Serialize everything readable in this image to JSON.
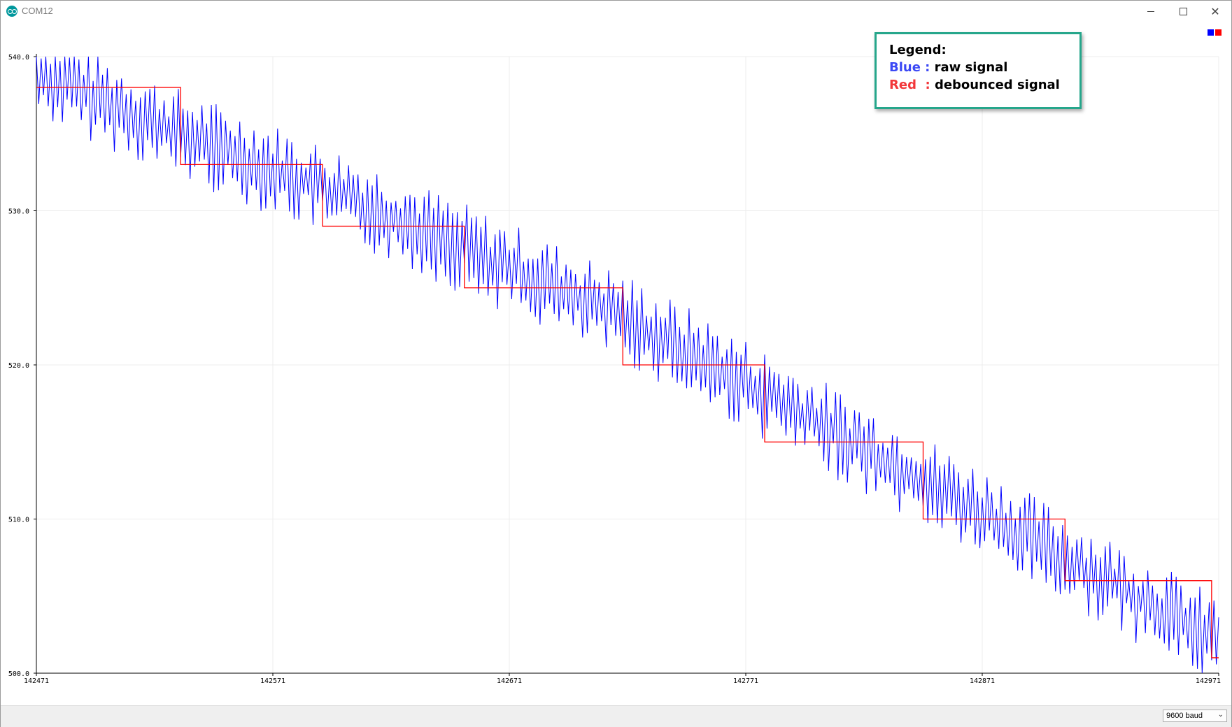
{
  "window": {
    "title": "COM12",
    "minimize_icon": "minimize-icon",
    "maximize_icon": "maximize-icon",
    "close_icon": "close-icon"
  },
  "legend": {
    "title": "Legend:",
    "blue_key": "Blue : ",
    "blue_desc": "raw signal",
    "red_key": "Red  : ",
    "red_desc": "debounced signal",
    "border_color": "#26a68b"
  },
  "status": {
    "baud": "9600 baud"
  },
  "chart_data": {
    "type": "line",
    "xlim": [
      142471,
      142971
    ],
    "ylim": [
      500.0,
      540.0
    ],
    "x_ticks": [
      "142471",
      "142571",
      "142671",
      "142771",
      "142871",
      "142971"
    ],
    "y_ticks": [
      "540.0",
      "530.0",
      "520.0",
      "510.0",
      "500.0"
    ],
    "grid": true,
    "legend_swatches": [
      "#0000ff",
      "#ff0000"
    ],
    "series": [
      {
        "color": "#0000ff",
        "description": "raw signal",
        "style": "noisy oscillation around the debounced level",
        "trend_points": [
          [
            142471,
            539
          ],
          [
            142531,
            535
          ],
          [
            142600,
            531
          ],
          [
            142660,
            527
          ],
          [
            142720,
            523
          ],
          [
            142780,
            518
          ],
          [
            142840,
            513
          ],
          [
            142900,
            508
          ],
          [
            142971,
            502
          ]
        ],
        "amplitude": 2.5
      },
      {
        "color": "#ff0000",
        "description": "debounced signal",
        "steps": [
          [
            142471,
            538
          ],
          [
            142532,
            533
          ],
          [
            142592,
            529
          ],
          [
            142652,
            525
          ],
          [
            142719,
            520
          ],
          [
            142779,
            515
          ],
          [
            142846,
            510
          ],
          [
            142906,
            506
          ],
          [
            142968,
            501
          ]
        ]
      }
    ]
  }
}
